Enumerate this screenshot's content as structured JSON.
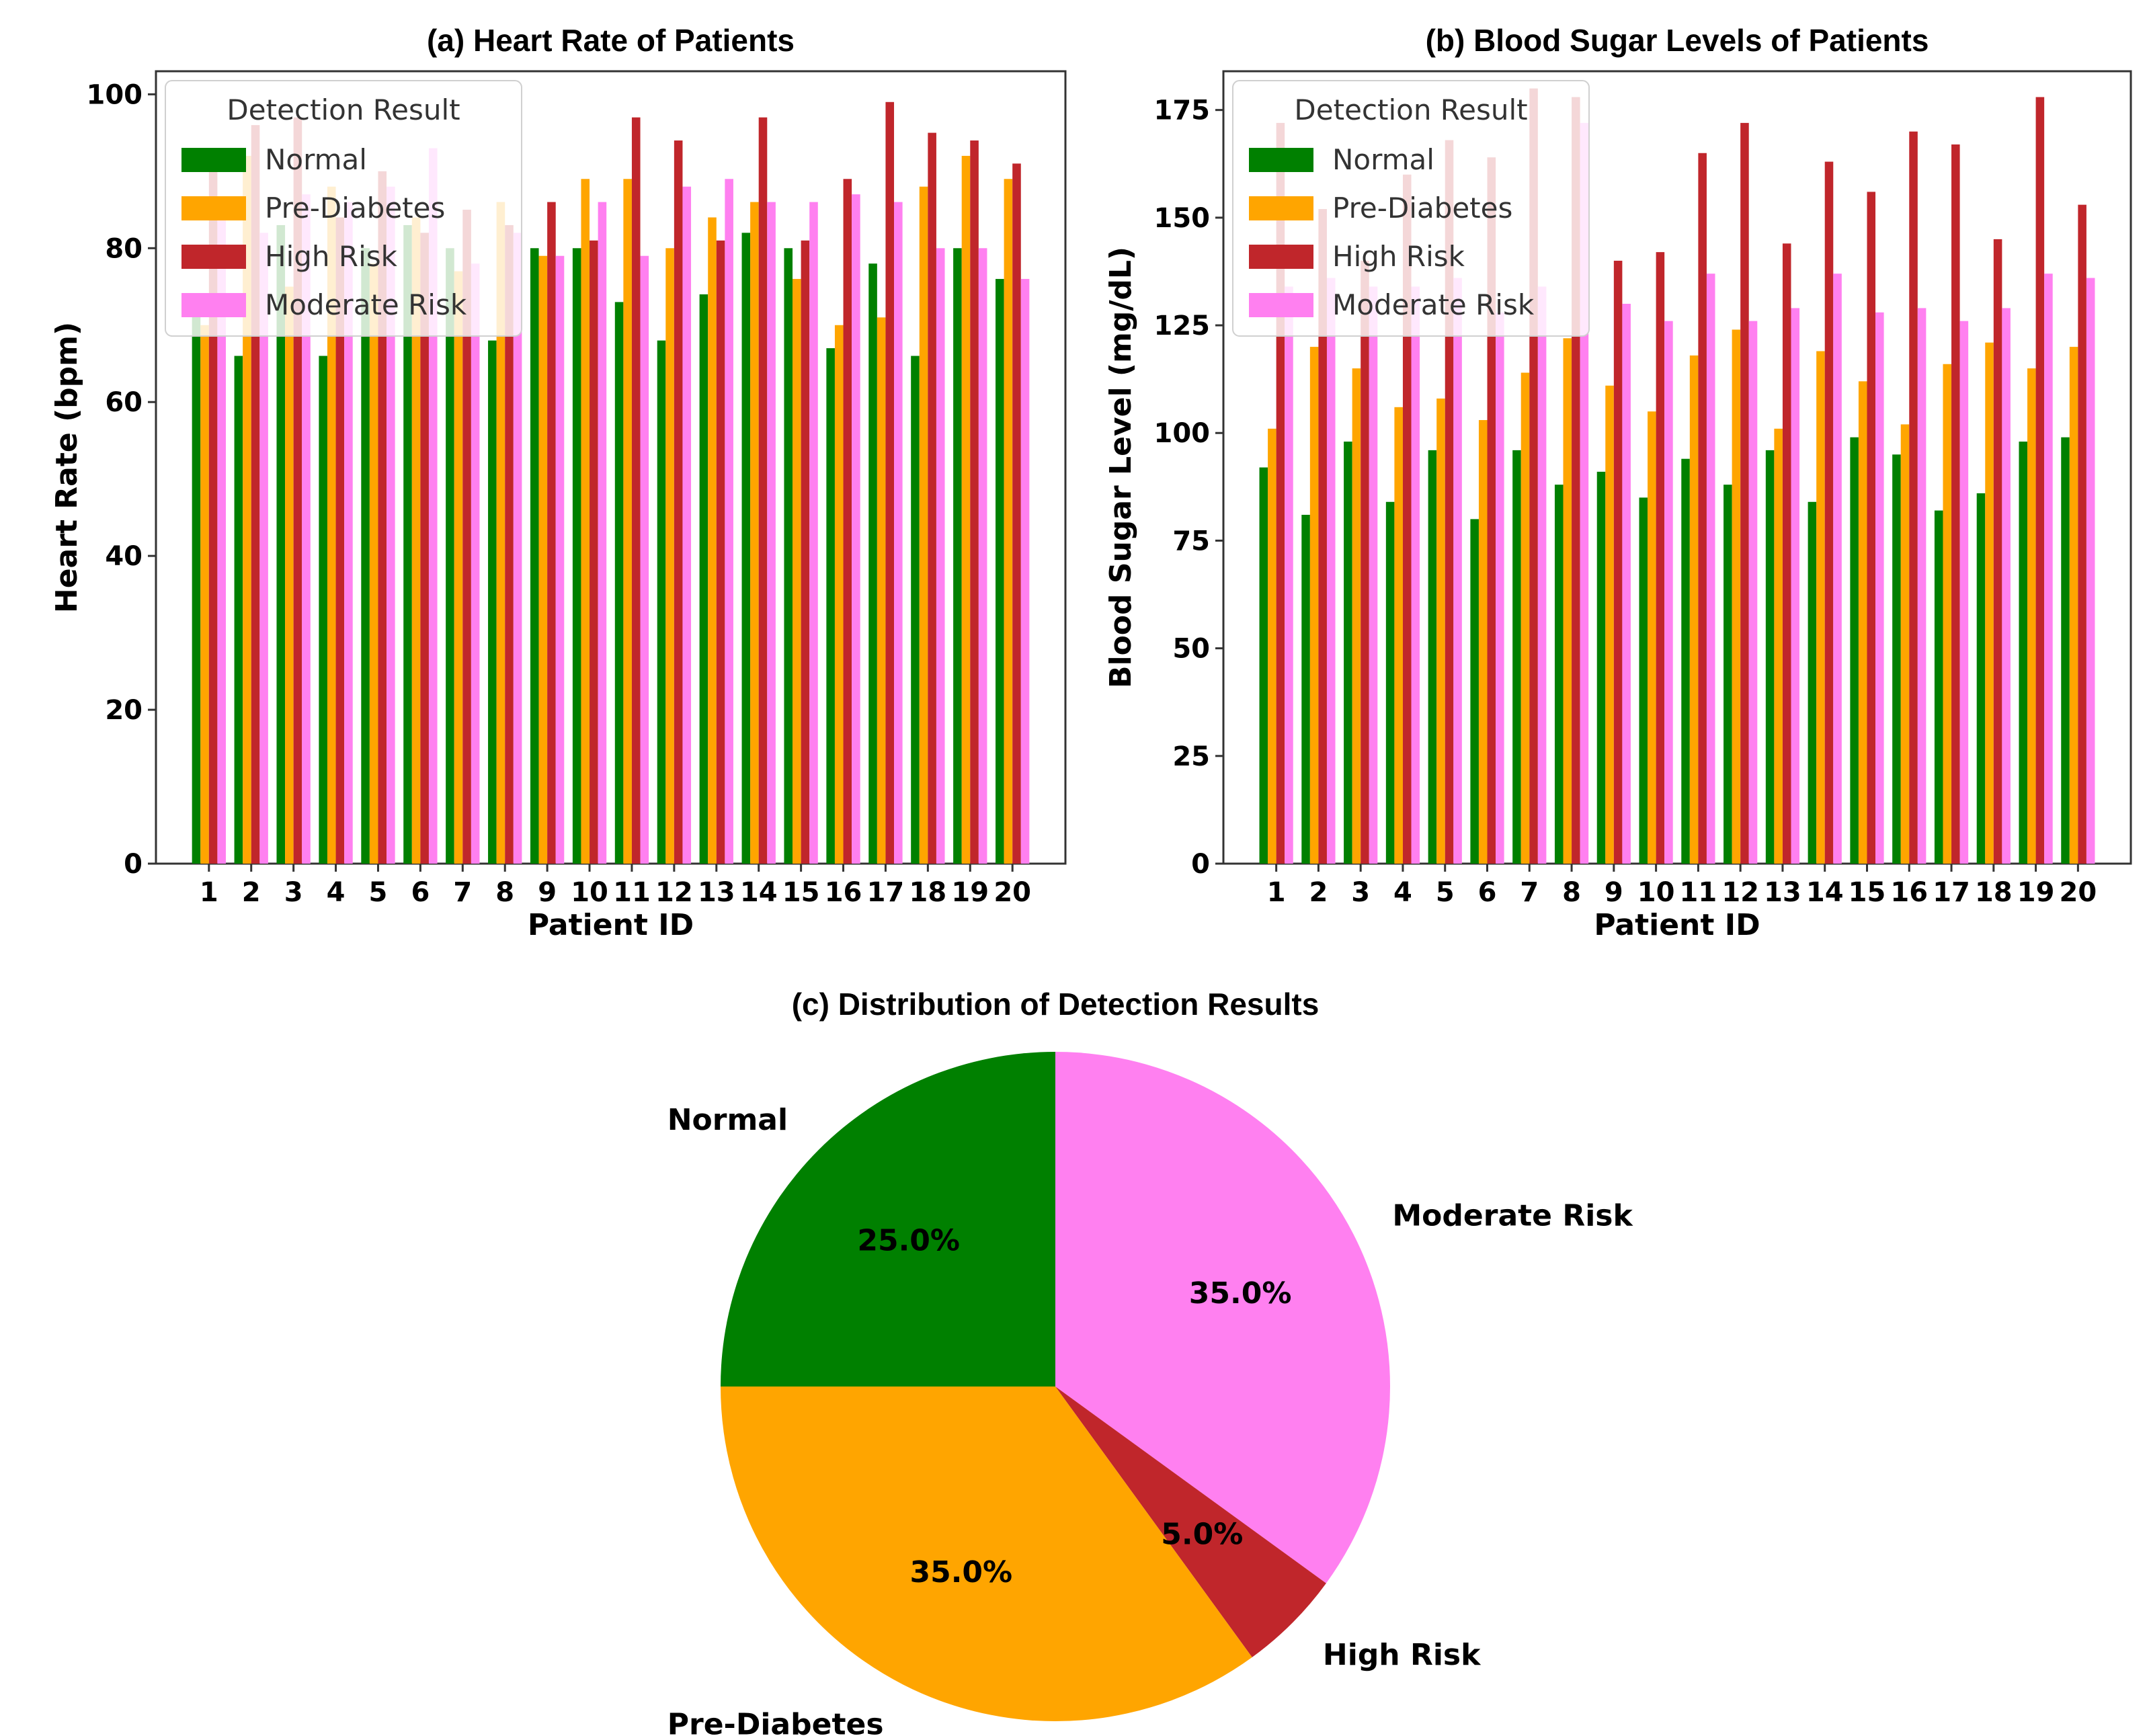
{
  "colors": {
    "Normal": "#008000",
    "Pre-Diabetes": "#FFA500",
    "High Risk": "#C0262B",
    "Moderate Risk": "#FF80F0"
  },
  "chart_data": [
    {
      "id": "heart-rate",
      "type": "bar",
      "title": "(a) Heart Rate of Patients",
      "xlabel": "Patient ID",
      "ylabel": "Heart Rate (bpm)",
      "ylim": [
        0,
        103
      ],
      "yticks": [
        0,
        20,
        40,
        60,
        80,
        100
      ],
      "categories": [
        "1",
        "2",
        "3",
        "4",
        "5",
        "6",
        "7",
        "8",
        "9",
        "10",
        "11",
        "12",
        "13",
        "14",
        "15",
        "16",
        "17",
        "18",
        "19",
        "20"
      ],
      "legend_title": "Detection Result",
      "legend_position": "top-left",
      "series": [
        {
          "name": "Normal",
          "values": [
            72,
            66,
            83,
            66,
            80,
            83,
            80,
            68,
            80,
            80,
            73,
            68,
            74,
            82,
            80,
            67,
            78,
            66,
            80,
            76
          ]
        },
        {
          "name": "Pre-Diabetes",
          "values": [
            70,
            92,
            75,
            88,
            78,
            84,
            77,
            86,
            79,
            89,
            89,
            80,
            84,
            86,
            76,
            70,
            71,
            88,
            92,
            89
          ]
        },
        {
          "name": "High Risk",
          "values": [
            91,
            96,
            97,
            84,
            90,
            82,
            85,
            83,
            86,
            81,
            97,
            94,
            81,
            97,
            81,
            89,
            99,
            95,
            94,
            91
          ]
        },
        {
          "name": "Moderate Risk",
          "values": [
            85,
            82,
            87,
            86,
            88,
            93,
            78,
            82,
            79,
            86,
            79,
            88,
            89,
            86,
            86,
            87,
            86,
            80,
            80,
            76
          ]
        }
      ]
    },
    {
      "id": "blood-sugar",
      "type": "bar",
      "title": "(b) Blood Sugar Levels of Patients",
      "xlabel": "Patient ID",
      "ylabel": "Blood Sugar Level (mg/dL)",
      "ylim": [
        0,
        184
      ],
      "yticks": [
        0,
        25,
        50,
        75,
        100,
        125,
        150,
        175
      ],
      "categories": [
        "1",
        "2",
        "3",
        "4",
        "5",
        "6",
        "7",
        "8",
        "9",
        "10",
        "11",
        "12",
        "13",
        "14",
        "15",
        "16",
        "17",
        "18",
        "19",
        "20"
      ],
      "legend_title": "Detection Result",
      "legend_position": "top-left",
      "series": [
        {
          "name": "Normal",
          "values": [
            92,
            81,
            98,
            84,
            96,
            80,
            96,
            88,
            91,
            85,
            94,
            88,
            96,
            84,
            99,
            95,
            82,
            86,
            98,
            99
          ]
        },
        {
          "name": "Pre-Diabetes",
          "values": [
            101,
            120,
            115,
            106,
            108,
            103,
            114,
            122,
            111,
            105,
            118,
            124,
            101,
            119,
            112,
            102,
            116,
            121,
            115,
            120
          ]
        },
        {
          "name": "High Risk",
          "values": [
            172,
            152,
            140,
            160,
            168,
            164,
            180,
            178,
            140,
            142,
            165,
            172,
            144,
            163,
            156,
            170,
            167,
            145,
            178,
            153
          ]
        },
        {
          "name": "Moderate Risk",
          "values": [
            134,
            136,
            134,
            134,
            136,
            128,
            134,
            172,
            130,
            126,
            137,
            126,
            129,
            137,
            128,
            129,
            126,
            129,
            137,
            136
          ]
        }
      ]
    },
    {
      "id": "distribution",
      "type": "pie",
      "title": "(c) Distribution of Detection Results",
      "slices": [
        {
          "label": "Normal",
          "value": 25.0,
          "pct_label": "25.0%"
        },
        {
          "label": "Moderate Risk",
          "value": 35.0,
          "pct_label": "35.0%"
        },
        {
          "label": "High Risk",
          "value": 5.0,
          "pct_label": "5.0%"
        },
        {
          "label": "Pre-Diabetes",
          "value": 35.0,
          "pct_label": "35.0%"
        }
      ]
    }
  ]
}
